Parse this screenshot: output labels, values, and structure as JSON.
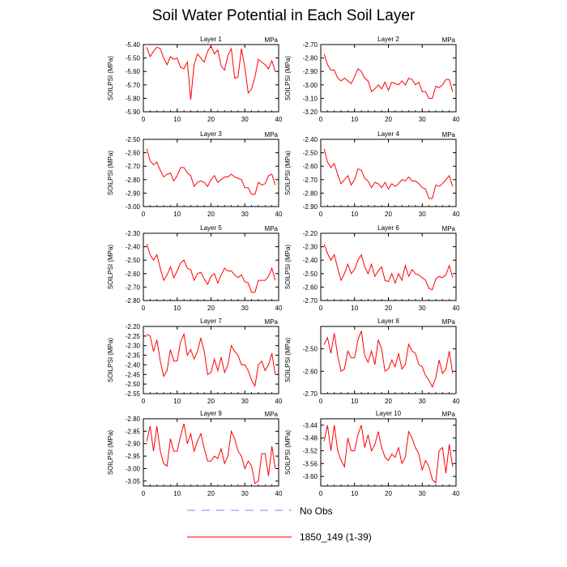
{
  "title": "Soil Water Potential in Each Soil Layer",
  "legend": {
    "no_obs_label": "No Obs",
    "model_label": "1850_149 (1-39)",
    "no_obs_color": "#8080ff",
    "model_color": "#ff0000"
  },
  "chart_data": [
    {
      "type": "line",
      "title": "Layer 1",
      "units": "MPa",
      "ylabel": "SOILPSI  (MPa)",
      "xlim": [
        0,
        40
      ],
      "ylim": [
        -5.9,
        -5.4
      ],
      "yticks": [
        "-5.40",
        "-5.50",
        "-5.60",
        "-5.70",
        "-5.80",
        "-5.90"
      ],
      "xticks": [
        "0",
        "10",
        "20",
        "30",
        "40"
      ],
      "x": [
        1,
        2,
        3,
        4,
        5,
        6,
        7,
        8,
        9,
        10,
        11,
        12,
        13,
        14,
        15,
        16,
        17,
        18,
        19,
        20,
        21,
        22,
        23,
        24,
        25,
        26,
        27,
        28,
        29,
        30,
        31,
        32,
        33,
        34,
        35,
        36,
        37,
        38,
        39
      ],
      "series": [
        {
          "name": "1850_149 (1-39)",
          "values": [
            -5.42,
            -5.49,
            -5.45,
            -5.42,
            -5.43,
            -5.5,
            -5.55,
            -5.49,
            -5.51,
            -5.5,
            -5.57,
            -5.58,
            -5.53,
            -5.81,
            -5.55,
            -5.47,
            -5.5,
            -5.53,
            -5.45,
            -5.41,
            -5.47,
            -5.44,
            -5.56,
            -5.59,
            -5.48,
            -5.43,
            -5.65,
            -5.64,
            -5.43,
            -5.57,
            -5.76,
            -5.73,
            -5.64,
            -5.51,
            -5.53,
            -5.55,
            -5.58,
            -5.52,
            -5.6
          ]
        }
      ]
    },
    {
      "type": "line",
      "title": "Layer 2",
      "units": "MPa",
      "ylabel": "SOILPSI  (MPa)",
      "xlim": [
        0,
        40
      ],
      "ylim": [
        -3.2,
        -2.7
      ],
      "yticks": [
        "-2.70",
        "-2.80",
        "-2.90",
        "-3.00",
        "-3.10",
        "-3.20"
      ],
      "xticks": [
        "0",
        "10",
        "20",
        "30",
        "40"
      ],
      "x": [
        1,
        2,
        3,
        4,
        5,
        6,
        7,
        8,
        9,
        10,
        11,
        12,
        13,
        14,
        15,
        16,
        17,
        18,
        19,
        20,
        21,
        22,
        23,
        24,
        25,
        26,
        27,
        28,
        29,
        30,
        31,
        32,
        33,
        34,
        35,
        36,
        37,
        38,
        39
      ],
      "series": [
        {
          "name": "1850_149 (1-39)",
          "values": [
            -2.77,
            -2.85,
            -2.89,
            -2.89,
            -2.95,
            -2.97,
            -2.95,
            -2.97,
            -2.99,
            -2.94,
            -2.88,
            -2.9,
            -2.95,
            -2.97,
            -3.05,
            -3.03,
            -3.0,
            -3.03,
            -2.98,
            -3.04,
            -2.98,
            -2.99,
            -3.0,
            -2.97,
            -3.0,
            -2.95,
            -2.96,
            -3.0,
            -2.98,
            -3.05,
            -3.05,
            -3.1,
            -3.1,
            -3.01,
            -3.02,
            -3.0,
            -2.96,
            -2.96,
            -3.05
          ]
        }
      ]
    },
    {
      "type": "line",
      "title": "Layer 3",
      "units": "MPa",
      "ylabel": "SOILPSI  (MPa)",
      "xlim": [
        0,
        40
      ],
      "ylim": [
        -3.0,
        -2.5
      ],
      "yticks": [
        "-2.50",
        "-2.60",
        "-2.70",
        "-2.80",
        "-2.90",
        "-3.00"
      ],
      "xticks": [
        "0",
        "10",
        "20",
        "30",
        "40"
      ],
      "x": [
        1,
        2,
        3,
        4,
        5,
        6,
        7,
        8,
        9,
        10,
        11,
        12,
        13,
        14,
        15,
        16,
        17,
        18,
        19,
        20,
        21,
        22,
        23,
        24,
        25,
        26,
        27,
        28,
        29,
        30,
        31,
        32,
        33,
        34,
        35,
        36,
        37,
        38,
        39
      ],
      "series": [
        {
          "name": "1850_149 (1-39)",
          "values": [
            -2.57,
            -2.66,
            -2.69,
            -2.67,
            -2.73,
            -2.78,
            -2.76,
            -2.75,
            -2.81,
            -2.77,
            -2.71,
            -2.71,
            -2.75,
            -2.77,
            -2.85,
            -2.82,
            -2.81,
            -2.82,
            -2.85,
            -2.8,
            -2.77,
            -2.82,
            -2.8,
            -2.78,
            -2.78,
            -2.76,
            -2.78,
            -2.79,
            -2.8,
            -2.86,
            -2.86,
            -2.91,
            -2.91,
            -2.82,
            -2.84,
            -2.83,
            -2.77,
            -2.76,
            -2.84
          ]
        }
      ]
    },
    {
      "type": "line",
      "title": "Layer 4",
      "units": "MPa",
      "ylabel": "SOILPSI  (MPa)",
      "xlim": [
        0,
        40
      ],
      "ylim": [
        -2.9,
        -2.4
      ],
      "yticks": [
        "-2.40",
        "-2.50",
        "-2.60",
        "-2.70",
        "-2.80",
        "-2.90"
      ],
      "xticks": [
        "0",
        "10",
        "20",
        "30",
        "40"
      ],
      "x": [
        1,
        2,
        3,
        4,
        5,
        6,
        7,
        8,
        9,
        10,
        11,
        12,
        13,
        14,
        15,
        16,
        17,
        18,
        19,
        20,
        21,
        22,
        23,
        24,
        25,
        26,
        27,
        28,
        29,
        30,
        31,
        32,
        33,
        34,
        35,
        36,
        37,
        38,
        39
      ],
      "series": [
        {
          "name": "1850_149 (1-39)",
          "values": [
            -2.47,
            -2.57,
            -2.61,
            -2.58,
            -2.66,
            -2.73,
            -2.7,
            -2.67,
            -2.74,
            -2.7,
            -2.62,
            -2.63,
            -2.69,
            -2.71,
            -2.76,
            -2.72,
            -2.73,
            -2.76,
            -2.72,
            -2.77,
            -2.73,
            -2.75,
            -2.73,
            -2.7,
            -2.71,
            -2.68,
            -2.71,
            -2.71,
            -2.73,
            -2.76,
            -2.77,
            -2.84,
            -2.84,
            -2.74,
            -2.75,
            -2.73,
            -2.7,
            -2.67,
            -2.75
          ]
        }
      ]
    },
    {
      "type": "line",
      "title": "Layer 5",
      "units": "MPa",
      "ylabel": "SOILPSI  (MPa)",
      "xlim": [
        0,
        40
      ],
      "ylim": [
        -2.8,
        -2.3
      ],
      "yticks": [
        "-2.30",
        "-2.40",
        "-2.50",
        "-2.60",
        "-2.70",
        "-2.80"
      ],
      "xticks": [
        "0",
        "10",
        "20",
        "30",
        "40"
      ],
      "x": [
        1,
        2,
        3,
        4,
        5,
        6,
        7,
        8,
        9,
        10,
        11,
        12,
        13,
        14,
        15,
        16,
        17,
        18,
        19,
        20,
        21,
        22,
        23,
        24,
        25,
        26,
        27,
        28,
        29,
        30,
        31,
        32,
        33,
        34,
        35,
        36,
        37,
        38,
        39
      ],
      "series": [
        {
          "name": "1850_149 (1-39)",
          "values": [
            -2.38,
            -2.46,
            -2.5,
            -2.46,
            -2.56,
            -2.65,
            -2.61,
            -2.55,
            -2.63,
            -2.58,
            -2.52,
            -2.5,
            -2.56,
            -2.57,
            -2.65,
            -2.6,
            -2.59,
            -2.64,
            -2.68,
            -2.62,
            -2.6,
            -2.67,
            -2.61,
            -2.56,
            -2.58,
            -2.58,
            -2.61,
            -2.63,
            -2.61,
            -2.66,
            -2.67,
            -2.74,
            -2.74,
            -2.65,
            -2.65,
            -2.65,
            -2.62,
            -2.56,
            -2.65
          ]
        }
      ]
    },
    {
      "type": "line",
      "title": "Layer 6",
      "units": "MPa",
      "ylabel": "SOILPSI  (MPa)",
      "xlim": [
        0,
        40
      ],
      "ylim": [
        -2.7,
        -2.2
      ],
      "yticks": [
        "-2.20",
        "-2.30",
        "-2.40",
        "-2.50",
        "-2.60",
        "-2.70"
      ],
      "xticks": [
        "0",
        "10",
        "20",
        "30",
        "40"
      ],
      "x": [
        1,
        2,
        3,
        4,
        5,
        6,
        7,
        8,
        9,
        10,
        11,
        12,
        13,
        14,
        15,
        16,
        17,
        18,
        19,
        20,
        21,
        22,
        23,
        24,
        25,
        26,
        27,
        28,
        29,
        30,
        31,
        32,
        33,
        34,
        35,
        36,
        37,
        38,
        39
      ],
      "series": [
        {
          "name": "1850_149 (1-39)",
          "values": [
            -2.28,
            -2.35,
            -2.4,
            -2.36,
            -2.46,
            -2.55,
            -2.5,
            -2.43,
            -2.5,
            -2.47,
            -2.4,
            -2.36,
            -2.45,
            -2.5,
            -2.43,
            -2.52,
            -2.48,
            -2.45,
            -2.55,
            -2.56,
            -2.5,
            -2.57,
            -2.5,
            -2.55,
            -2.44,
            -2.52,
            -2.47,
            -2.5,
            -2.51,
            -2.53,
            -2.55,
            -2.61,
            -2.62,
            -2.54,
            -2.52,
            -2.53,
            -2.51,
            -2.44,
            -2.53
          ]
        }
      ]
    },
    {
      "type": "line",
      "title": "Layer 7",
      "units": "MPa",
      "ylabel": "SOILPSI  (MPa)",
      "xlim": [
        0,
        40
      ],
      "ylim": [
        -2.55,
        -2.2
      ],
      "yticks": [
        "-2.20",
        "-2.25",
        "-2.30",
        "-2.35",
        "-2.40",
        "-2.45",
        "-2.50",
        "-2.55"
      ],
      "xticks": [
        "0",
        "10",
        "20",
        "30",
        "40"
      ],
      "x": [
        1,
        2,
        3,
        4,
        5,
        6,
        7,
        8,
        9,
        10,
        11,
        12,
        13,
        14,
        15,
        16,
        17,
        18,
        19,
        20,
        21,
        22,
        23,
        24,
        25,
        26,
        27,
        28,
        29,
        30,
        31,
        32,
        33,
        34,
        35,
        36,
        37,
        38,
        39
      ],
      "series": [
        {
          "name": "1850_149 (1-39)",
          "values": [
            -2.24,
            -2.25,
            -2.33,
            -2.27,
            -2.38,
            -2.46,
            -2.43,
            -2.32,
            -2.38,
            -2.38,
            -2.28,
            -2.24,
            -2.35,
            -2.32,
            -2.37,
            -2.33,
            -2.26,
            -2.33,
            -2.45,
            -2.44,
            -2.37,
            -2.43,
            -2.36,
            -2.44,
            -2.4,
            -2.3,
            -2.33,
            -2.35,
            -2.4,
            -2.4,
            -2.43,
            -2.48,
            -2.51,
            -2.4,
            -2.38,
            -2.43,
            -2.4,
            -2.34,
            -2.45
          ]
        }
      ]
    },
    {
      "type": "line",
      "title": "Layer 8",
      "units": "MPa",
      "ylabel": "SOILPSI  (MPa)",
      "xlim": [
        0,
        40
      ],
      "ylim": [
        -2.7,
        -2.4
      ],
      "yticks": [
        "-2.50",
        "-2.60",
        "-2.70"
      ],
      "xticks": [
        "0",
        "10",
        "20",
        "30",
        "40"
      ],
      "x": [
        1,
        2,
        3,
        4,
        5,
        6,
        7,
        8,
        9,
        10,
        11,
        12,
        13,
        14,
        15,
        16,
        17,
        18,
        19,
        20,
        21,
        22,
        23,
        24,
        25,
        26,
        27,
        28,
        29,
        30,
        31,
        32,
        33,
        34,
        35,
        36,
        37,
        38,
        39
      ],
      "series": [
        {
          "name": "1850_149 (1-39)",
          "values": [
            -2.48,
            -2.45,
            -2.52,
            -2.43,
            -2.53,
            -2.6,
            -2.59,
            -2.51,
            -2.54,
            -2.54,
            -2.46,
            -2.42,
            -2.53,
            -2.56,
            -2.51,
            -2.57,
            -2.46,
            -2.5,
            -2.6,
            -2.59,
            -2.55,
            -2.58,
            -2.52,
            -2.59,
            -2.57,
            -2.48,
            -2.51,
            -2.52,
            -2.57,
            -2.58,
            -2.62,
            -2.64,
            -2.67,
            -2.63,
            -2.55,
            -2.61,
            -2.59,
            -2.51,
            -2.61
          ]
        }
      ]
    },
    {
      "type": "line",
      "title": "Layer 9",
      "units": "MPa",
      "ylabel": "SOILPSI  (MPa)",
      "xlim": [
        0,
        40
      ],
      "ylim": [
        -3.07,
        -2.8
      ],
      "yticks": [
        "-2.80",
        "-2.85",
        "-2.90",
        "-2.95",
        "-3.00",
        "-3.05"
      ],
      "xticks": [
        "0",
        "10",
        "20",
        "30",
        "40"
      ],
      "x": [
        1,
        2,
        3,
        4,
        5,
        6,
        7,
        8,
        9,
        10,
        11,
        12,
        13,
        14,
        15,
        16,
        17,
        18,
        19,
        20,
        21,
        22,
        23,
        24,
        25,
        26,
        27,
        28,
        29,
        30,
        31,
        32,
        33,
        34,
        35,
        36,
        37,
        38,
        39
      ],
      "series": [
        {
          "name": "1850_149 (1-39)",
          "values": [
            -2.89,
            -2.83,
            -2.93,
            -2.83,
            -2.93,
            -2.98,
            -2.99,
            -2.88,
            -2.93,
            -2.93,
            -2.87,
            -2.82,
            -2.9,
            -2.86,
            -2.93,
            -2.89,
            -2.86,
            -2.92,
            -2.97,
            -2.97,
            -2.95,
            -2.96,
            -2.92,
            -2.98,
            -2.95,
            -2.85,
            -2.88,
            -2.93,
            -2.95,
            -3.0,
            -2.97,
            -2.99,
            -3.06,
            -3.05,
            -2.94,
            -2.94,
            -3.03,
            -2.91,
            -3.0
          ]
        }
      ]
    },
    {
      "type": "line",
      "title": "Layer 10",
      "units": "MPa",
      "ylabel": "SOILPSI  (MPa)",
      "xlim": [
        0,
        40
      ],
      "ylim": [
        -3.63,
        -3.42
      ],
      "yticks": [
        "-3.44",
        "-3.48",
        "-3.52",
        "-3.56",
        "-3.60"
      ],
      "xticks": [
        "0",
        "10",
        "20",
        "30",
        "40"
      ],
      "x": [
        1,
        2,
        3,
        4,
        5,
        6,
        7,
        8,
        9,
        10,
        11,
        12,
        13,
        14,
        15,
        16,
        17,
        18,
        19,
        20,
        21,
        22,
        23,
        24,
        25,
        26,
        27,
        28,
        29,
        30,
        31,
        32,
        33,
        34,
        35,
        36,
        37,
        38,
        39
      ],
      "series": [
        {
          "name": "1850_149 (1-39)",
          "values": [
            -3.49,
            -3.44,
            -3.52,
            -3.44,
            -3.52,
            -3.55,
            -3.57,
            -3.48,
            -3.52,
            -3.52,
            -3.47,
            -3.44,
            -3.51,
            -3.47,
            -3.52,
            -3.5,
            -3.46,
            -3.51,
            -3.54,
            -3.55,
            -3.53,
            -3.54,
            -3.51,
            -3.56,
            -3.54,
            -3.46,
            -3.48,
            -3.51,
            -3.53,
            -3.58,
            -3.55,
            -3.57,
            -3.61,
            -3.62,
            -3.52,
            -3.51,
            -3.59,
            -3.5,
            -3.57
          ]
        }
      ]
    }
  ]
}
